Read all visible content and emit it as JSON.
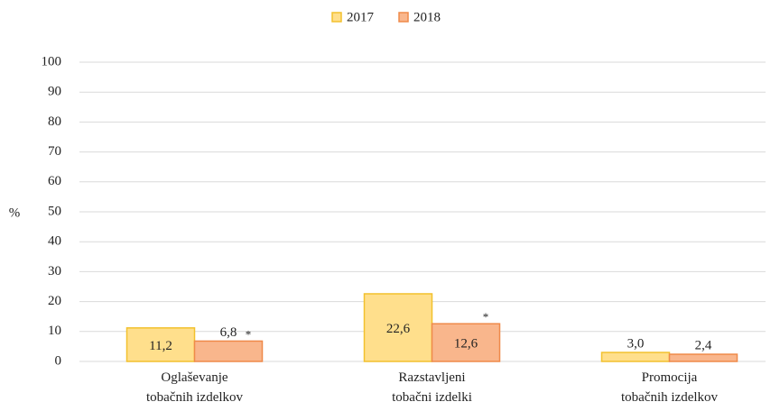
{
  "chart_data": {
    "type": "bar",
    "y_label": "%",
    "categories": [
      [
        "Oglaševanje",
        "tobačnih izdelkov"
      ],
      [
        "Razstavljeni",
        "tobačni izdelki"
      ],
      [
        "Promocija",
        "tobačnih izdelkov"
      ]
    ],
    "series": [
      {
        "name": "2017",
        "color": "#ffdf8c",
        "edge": "#f2c12e",
        "values": [
          11.2,
          22.6,
          3.0
        ],
        "value_labels": [
          "11,2",
          "22,6",
          "3,0"
        ]
      },
      {
        "name": "2018",
        "color": "#f9b68c",
        "edge": "#ef8a4a",
        "values": [
          6.8,
          12.6,
          2.4
        ],
        "value_labels": [
          "6,8",
          "12,6",
          "2,4"
        ],
        "notes": [
          "*",
          "*",
          null
        ]
      }
    ],
    "ylim": [
      0,
      100
    ],
    "yticks": [
      0,
      10,
      20,
      30,
      40,
      50,
      60,
      70,
      80,
      90,
      100
    ],
    "grid": true,
    "legend": "top"
  }
}
